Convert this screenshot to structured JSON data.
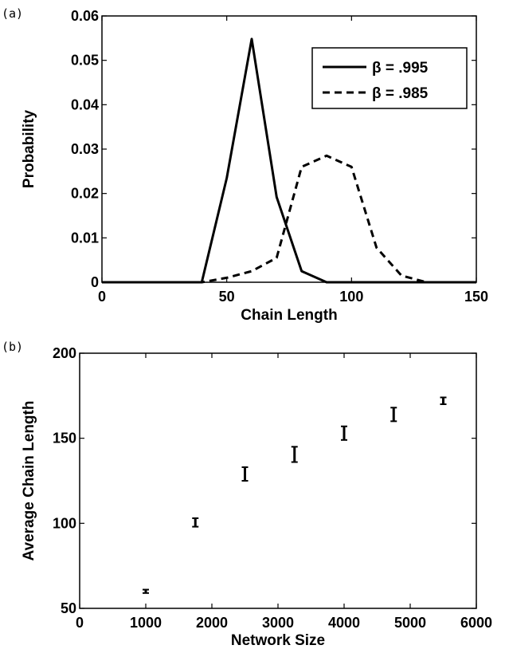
{
  "chart_data": [
    {
      "panel_label": "(a)",
      "type": "line",
      "xlabel": "Chain Length",
      "ylabel": "Probability",
      "xlim": [
        0,
        150
      ],
      "ylim": [
        0,
        0.06
      ],
      "xticks": [
        "0",
        "50",
        "100",
        "150"
      ],
      "yticks": [
        "0",
        "0.01",
        "0.02",
        "0.03",
        "0.04",
        "0.05",
        "0.06"
      ],
      "grid": false,
      "legend_position": "top-right",
      "series": [
        {
          "name": "β = .995",
          "style": "solid",
          "x": [
            0,
            10,
            20,
            30,
            40,
            50,
            60,
            70,
            80,
            90,
            100,
            110,
            120,
            130,
            140,
            150
          ],
          "y": [
            0,
            0,
            0,
            0,
            0,
            0.0235,
            0.0548,
            0.0192,
            0.0025,
            0,
            0,
            0,
            0,
            0,
            0,
            0
          ]
        },
        {
          "name": "β = .985",
          "style": "dashed",
          "x": [
            0,
            10,
            20,
            30,
            40,
            50,
            60,
            70,
            80,
            90,
            100,
            110,
            120,
            130,
            140,
            150
          ],
          "y": [
            0,
            0,
            0,
            0,
            0,
            0.001,
            0.0025,
            0.0055,
            0.026,
            0.0285,
            0.026,
            0.0078,
            0.0015,
            0,
            0,
            0
          ]
        }
      ]
    },
    {
      "panel_label": "(b)",
      "type": "scatter",
      "xlabel": "Network Size",
      "ylabel": "Average Chain Length",
      "xlim": [
        0,
        6000
      ],
      "ylim": [
        50,
        200
      ],
      "xticks": [
        "0",
        "1000",
        "2000",
        "3000",
        "4000",
        "5000",
        "6000"
      ],
      "yticks": [
        "50",
        "100",
        "150",
        "200"
      ],
      "grid": false,
      "error_bars": true,
      "points": [
        {
          "x": 1000,
          "y": 60,
          "low": 59,
          "high": 61
        },
        {
          "x": 1750,
          "y": 100,
          "low": 98,
          "high": 103
        },
        {
          "x": 2500,
          "y": 129,
          "low": 125,
          "high": 133
        },
        {
          "x": 3250,
          "y": 140,
          "low": 136,
          "high": 145
        },
        {
          "x": 4000,
          "y": 153,
          "low": 149,
          "high": 157
        },
        {
          "x": 4750,
          "y": 164,
          "low": 160,
          "high": 168
        },
        {
          "x": 5500,
          "y": 172,
          "low": 170,
          "high": 174
        }
      ]
    }
  ]
}
